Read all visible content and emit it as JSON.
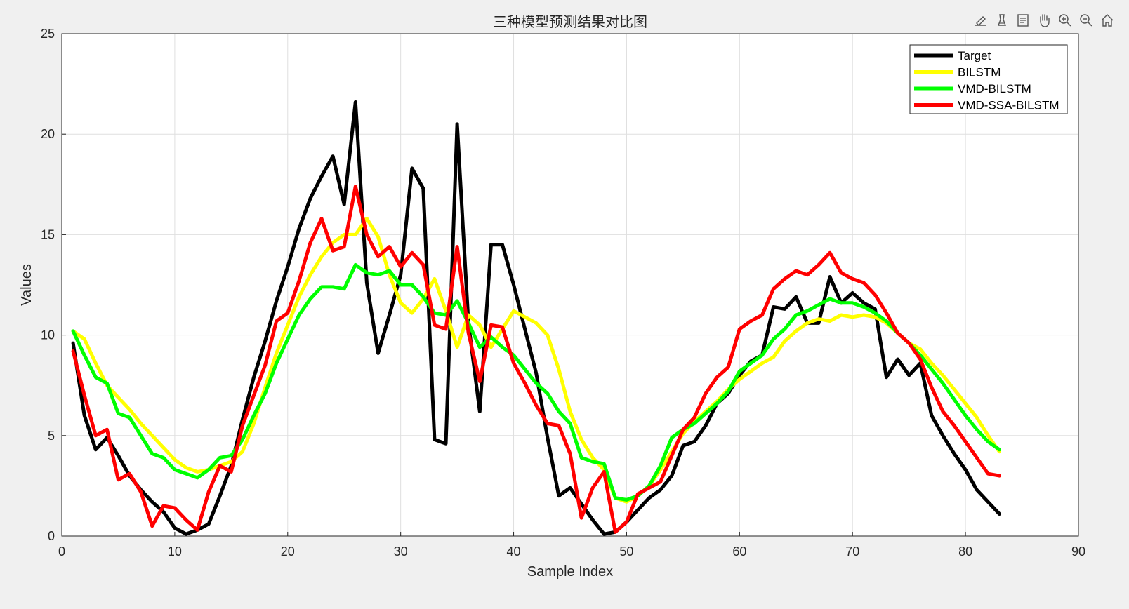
{
  "toolbar": {
    "buttons": [
      {
        "icon": "edit-plot-icon"
      },
      {
        "icon": "brush-icon"
      },
      {
        "icon": "data-tips-icon"
      },
      {
        "icon": "pan-hand-icon"
      },
      {
        "icon": "zoom-in-icon"
      },
      {
        "icon": "zoom-out-icon"
      },
      {
        "icon": "home-icon"
      }
    ]
  },
  "chart_data": {
    "type": "line",
    "title": "三种模型预测结果对比图",
    "xlabel": "Sample Index",
    "ylabel": "Values",
    "xlim": [
      0,
      90
    ],
    "ylim": [
      0,
      25
    ],
    "xticks": [
      0,
      10,
      20,
      30,
      40,
      50,
      60,
      70,
      80,
      90
    ],
    "yticks": [
      0,
      5,
      10,
      15,
      20,
      25
    ],
    "grid": true,
    "legend_position": "top-right",
    "x": [
      1,
      2,
      3,
      4,
      5,
      6,
      7,
      8,
      9,
      10,
      11,
      12,
      13,
      14,
      15,
      16,
      17,
      18,
      19,
      20,
      21,
      22,
      23,
      24,
      25,
      26,
      27,
      28,
      29,
      30,
      31,
      32,
      33,
      34,
      35,
      36,
      37,
      38,
      39,
      40,
      41,
      42,
      43,
      44,
      45,
      46,
      47,
      48,
      49,
      50,
      51,
      52,
      53,
      54,
      55,
      56,
      57,
      58,
      59,
      60,
      61,
      62,
      63,
      64,
      65,
      66,
      67,
      68,
      69,
      70,
      71,
      72,
      73,
      74,
      75,
      76,
      77,
      78,
      79,
      80,
      81,
      82,
      83
    ],
    "series": [
      {
        "name": "Target",
        "color": "#000000",
        "values": [
          9.6,
          6.0,
          4.3,
          4.9,
          4.0,
          3.0,
          2.3,
          1.7,
          1.2,
          0.4,
          0.1,
          0.3,
          0.6,
          2.0,
          3.5,
          5.8,
          7.9,
          9.7,
          11.7,
          13.4,
          15.3,
          16.8,
          17.9,
          18.9,
          16.5,
          21.6,
          12.6,
          9.1,
          11.0,
          13.0,
          18.3,
          17.3,
          4.8,
          4.6,
          20.5,
          10.6,
          6.2,
          14.5,
          14.5,
          12.5,
          10.3,
          8.1,
          4.9,
          2.0,
          2.4,
          1.6,
          0.8,
          0.1,
          0.2,
          0.7,
          1.3,
          1.9,
          2.3,
          3.0,
          4.5,
          4.7,
          5.5,
          6.6,
          7.1,
          8.0,
          8.7,
          9.0,
          11.4,
          11.3,
          11.9,
          10.6,
          10.6,
          12.9,
          11.6,
          12.1,
          11.6,
          11.3,
          7.9,
          8.8,
          8.0,
          8.6,
          6.0,
          5.0,
          4.1,
          3.3,
          2.3,
          1.7,
          1.1
        ]
      },
      {
        "name": "BILSTM",
        "color": "#ffff00",
        "values": [
          10.2,
          9.8,
          8.6,
          7.5,
          6.9,
          6.3,
          5.6,
          5.0,
          4.4,
          3.8,
          3.4,
          3.2,
          3.3,
          3.5,
          3.7,
          4.2,
          5.6,
          7.4,
          9.1,
          10.5,
          11.9,
          13.0,
          13.9,
          14.6,
          15.0,
          15.0,
          15.8,
          14.9,
          13.0,
          11.6,
          11.1,
          11.8,
          12.8,
          11.2,
          9.4,
          11.0,
          10.5,
          9.4,
          10.3,
          11.2,
          10.9,
          10.6,
          10.0,
          8.3,
          6.2,
          4.8,
          3.9,
          3.3,
          1.9,
          1.7,
          2.0,
          2.5,
          3.3,
          4.2,
          5.1,
          5.7,
          6.2,
          6.7,
          7.3,
          7.8,
          8.2,
          8.6,
          8.9,
          9.7,
          10.2,
          10.6,
          10.8,
          10.7,
          11.0,
          10.9,
          11.0,
          10.9,
          10.6,
          10.1,
          9.6,
          9.3,
          8.6,
          8.0,
          7.3,
          6.6,
          5.9,
          5.0,
          4.2
        ]
      },
      {
        "name": "VMD-BILSTM",
        "color": "#00ff00",
        "values": [
          10.2,
          9.0,
          7.9,
          7.6,
          6.1,
          5.9,
          5.0,
          4.1,
          3.9,
          3.3,
          3.1,
          2.9,
          3.3,
          3.9,
          4.0,
          4.8,
          6.0,
          7.1,
          8.6,
          9.8,
          11.0,
          11.8,
          12.4,
          12.4,
          12.3,
          13.5,
          13.1,
          13.0,
          13.2,
          12.5,
          12.5,
          11.9,
          11.1,
          11.0,
          11.7,
          10.6,
          9.4,
          9.9,
          9.4,
          9.0,
          8.3,
          7.6,
          7.1,
          6.2,
          5.6,
          3.9,
          3.7,
          3.6,
          1.9,
          1.8,
          2.0,
          2.5,
          3.5,
          4.9,
          5.3,
          5.6,
          6.1,
          6.6,
          7.2,
          8.2,
          8.6,
          9.0,
          9.8,
          10.3,
          11.0,
          11.2,
          11.5,
          11.8,
          11.6,
          11.6,
          11.4,
          11.1,
          10.7,
          10.1,
          9.6,
          9.0,
          8.3,
          7.6,
          6.8,
          6.0,
          5.3,
          4.7,
          4.3
        ]
      },
      {
        "name": "VMD-SSA-BILSTM",
        "color": "#ff0000",
        "values": [
          9.2,
          7.0,
          5.0,
          5.3,
          2.8,
          3.1,
          2.2,
          0.5,
          1.5,
          1.4,
          0.8,
          0.3,
          2.2,
          3.5,
          3.2,
          5.5,
          7.0,
          8.5,
          10.7,
          11.1,
          12.7,
          14.6,
          15.8,
          14.2,
          14.4,
          17.4,
          15.0,
          13.9,
          14.4,
          13.4,
          14.1,
          13.5,
          10.5,
          10.3,
          14.4,
          10.1,
          7.7,
          10.5,
          10.4,
          8.6,
          7.6,
          6.5,
          5.6,
          5.5,
          4.1,
          0.9,
          2.4,
          3.2,
          0.2,
          0.7,
          2.1,
          2.4,
          2.7,
          4.0,
          5.3,
          5.9,
          7.1,
          7.9,
          8.4,
          10.3,
          10.7,
          11.0,
          12.3,
          12.8,
          13.2,
          13.0,
          13.5,
          14.1,
          13.1,
          12.8,
          12.6,
          12.0,
          11.1,
          10.1,
          9.6,
          8.8,
          7.4,
          6.2,
          5.5,
          4.7,
          3.9,
          3.1,
          3.0
        ]
      }
    ]
  }
}
